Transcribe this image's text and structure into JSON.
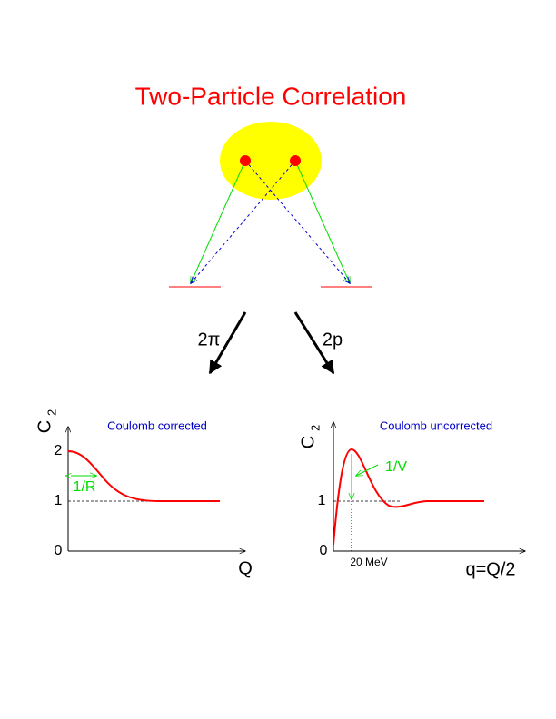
{
  "title": "Two-Particle Correlation",
  "arrows": {
    "left": "2π",
    "right": "2p"
  },
  "left_plot": {
    "y_label": {
      "symbol": "C",
      "subscript": "2"
    },
    "caption": "Coulomb corrected",
    "y_ticks": [
      "2",
      "1",
      "0"
    ],
    "width_label": "1/R",
    "x_label": "Q"
  },
  "right_plot": {
    "y_label": {
      "symbol": "C",
      "subscript": "2"
    },
    "caption": "Coulomb uncorrected",
    "y_ticks": [
      "1",
      "0"
    ],
    "height_label": "1/V",
    "x_marker": "20 MeV",
    "x_label": "q=Q/2"
  }
}
